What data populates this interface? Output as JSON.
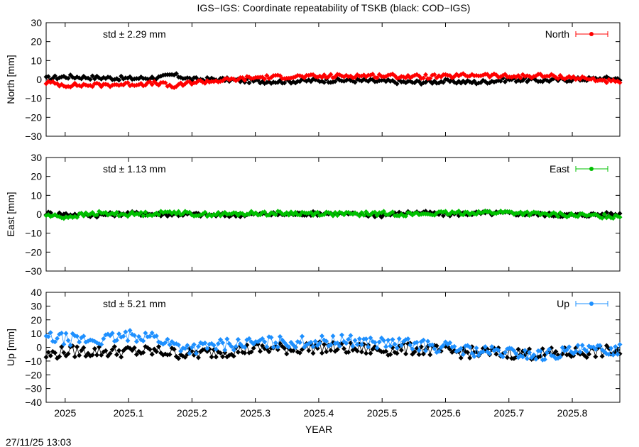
{
  "title": "IGS−IGS: Coordinate repeatability of TSKB (black: COD−IGS)",
  "timestamp": "27/11/25 13:03",
  "xlabel": "YEAR",
  "x_ticks": [
    "2025",
    "2025.1",
    "2025.2",
    "2025.3",
    "2025.4",
    "2025.5",
    "2025.6",
    "2025.7",
    "2025.8"
  ],
  "xlim": [
    2024.97,
    2025.875
  ],
  "chart_data": [
    {
      "type": "line",
      "ylabel": "North [mm]",
      "ylim": [
        -30,
        30
      ],
      "y_ticks": [
        "30",
        "20",
        "10",
        "0",
        "−10",
        "−20",
        "−30"
      ],
      "std_label": "std ± 2.29 mm",
      "legend": "North",
      "legend_position": "top-right",
      "color": "#ff0000",
      "series": [
        {
          "color": "#ff0000",
          "points": [
            [
              2024.97,
              -1.5
            ],
            [
              2025.0,
              -3.0
            ],
            [
              2025.05,
              -3.0
            ],
            [
              2025.1,
              -2.5
            ],
            [
              2025.15,
              -2.0
            ],
            [
              2025.17,
              -4.0
            ],
            [
              2025.2,
              -1.5
            ],
            [
              2025.25,
              -0.5
            ],
            [
              2025.3,
              1.0
            ],
            [
              2025.35,
              1.5
            ],
            [
              2025.4,
              1.5
            ],
            [
              2025.45,
              2.0
            ],
            [
              2025.5,
              2.0
            ],
            [
              2025.55,
              1.5
            ],
            [
              2025.6,
              1.5
            ],
            [
              2025.65,
              2.5
            ],
            [
              2025.7,
              1.5
            ],
            [
              2025.75,
              2.0
            ],
            [
              2025.8,
              1.0
            ],
            [
              2025.85,
              -0.5
            ],
            [
              2025.875,
              -2.0
            ]
          ]
        },
        {
          "color": "#000000",
          "points": [
            [
              2024.97,
              0.5
            ],
            [
              2025.0,
              1.5
            ],
            [
              2025.05,
              1.0
            ],
            [
              2025.1,
              0.5
            ],
            [
              2025.15,
              1.0
            ],
            [
              2025.17,
              2.5
            ],
            [
              2025.2,
              0.0
            ],
            [
              2025.25,
              0.0
            ],
            [
              2025.3,
              -1.0
            ],
            [
              2025.35,
              -1.0
            ],
            [
              2025.4,
              -0.5
            ],
            [
              2025.45,
              -0.5
            ],
            [
              2025.5,
              -1.0
            ],
            [
              2025.55,
              -1.5
            ],
            [
              2025.6,
              -1.0
            ],
            [
              2025.65,
              -1.5
            ],
            [
              2025.7,
              0.0
            ],
            [
              2025.75,
              -0.5
            ],
            [
              2025.8,
              0.0
            ],
            [
              2025.85,
              0.5
            ],
            [
              2025.875,
              0.5
            ]
          ]
        }
      ]
    },
    {
      "type": "line",
      "ylabel": "East [mm]",
      "ylim": [
        -30,
        30
      ],
      "y_ticks": [
        "30",
        "20",
        "10",
        "0",
        "−10",
        "−20",
        "−30"
      ],
      "std_label": "std ± 1.13 mm",
      "legend": "East",
      "legend_position": "top-right",
      "color": "#00c000",
      "series": [
        {
          "color": "#00c000",
          "points": [
            [
              2024.97,
              -0.5
            ],
            [
              2025.0,
              -1.5
            ],
            [
              2025.05,
              0.5
            ],
            [
              2025.1,
              0.0
            ],
            [
              2025.15,
              0.5
            ],
            [
              2025.17,
              1.5
            ],
            [
              2025.2,
              0.0
            ],
            [
              2025.25,
              0.0
            ],
            [
              2025.3,
              0.5
            ],
            [
              2025.35,
              0.5
            ],
            [
              2025.4,
              0.5
            ],
            [
              2025.45,
              0.0
            ],
            [
              2025.5,
              0.5
            ],
            [
              2025.55,
              0.0
            ],
            [
              2025.6,
              0.5
            ],
            [
              2025.65,
              1.0
            ],
            [
              2025.7,
              1.0
            ],
            [
              2025.75,
              0.0
            ],
            [
              2025.8,
              -0.5
            ],
            [
              2025.85,
              -1.0
            ],
            [
              2025.875,
              -1.0
            ]
          ]
        },
        {
          "color": "#000000",
          "points": [
            [
              2024.97,
              0.5
            ],
            [
              2025.0,
              0.0
            ],
            [
              2025.05,
              -0.5
            ],
            [
              2025.1,
              0.5
            ],
            [
              2025.15,
              0.0
            ],
            [
              2025.17,
              0.0
            ],
            [
              2025.2,
              0.0
            ],
            [
              2025.25,
              -0.5
            ],
            [
              2025.3,
              0.0
            ],
            [
              2025.35,
              0.0
            ],
            [
              2025.4,
              0.5
            ],
            [
              2025.45,
              0.0
            ],
            [
              2025.5,
              -0.5
            ],
            [
              2025.55,
              1.0
            ],
            [
              2025.6,
              0.0
            ],
            [
              2025.65,
              0.5
            ],
            [
              2025.7,
              0.5
            ],
            [
              2025.75,
              0.0
            ],
            [
              2025.8,
              -0.5
            ],
            [
              2025.85,
              0.0
            ],
            [
              2025.875,
              0.0
            ]
          ]
        }
      ]
    },
    {
      "type": "line",
      "ylabel": "Up [mm]",
      "ylim": [
        -40,
        40
      ],
      "y_ticks": [
        "40",
        "30",
        "20",
        "10",
        "0",
        "−10",
        "−20",
        "−30",
        "−40"
      ],
      "std_label": "std ± 5.21 mm",
      "legend": "Up",
      "legend_position": "top-right",
      "color": "#1e90ff",
      "series": [
        {
          "color": "#1e90ff",
          "points": [
            [
              2024.97,
              7.0
            ],
            [
              2025.0,
              6.0
            ],
            [
              2025.05,
              5.0
            ],
            [
              2025.1,
              8.0
            ],
            [
              2025.13,
              9.0
            ],
            [
              2025.17,
              2.0
            ],
            [
              2025.2,
              -1.0
            ],
            [
              2025.25,
              2.0
            ],
            [
              2025.3,
              3.0
            ],
            [
              2025.35,
              4.0
            ],
            [
              2025.4,
              4.0
            ],
            [
              2025.45,
              5.0
            ],
            [
              2025.5,
              3.0
            ],
            [
              2025.55,
              2.0
            ],
            [
              2025.6,
              0.0
            ],
            [
              2025.65,
              -3.0
            ],
            [
              2025.7,
              -4.0
            ],
            [
              2025.75,
              -6.0
            ],
            [
              2025.8,
              -3.0
            ],
            [
              2025.85,
              -2.0
            ],
            [
              2025.875,
              -1.0
            ]
          ]
        },
        {
          "color": "#000000",
          "points": [
            [
              2024.97,
              -6.0
            ],
            [
              2025.0,
              -3.0
            ],
            [
              2025.05,
              -3.0
            ],
            [
              2025.1,
              -3.0
            ],
            [
              2025.15,
              -3.0
            ],
            [
              2025.17,
              -4.0
            ],
            [
              2025.2,
              -5.0
            ],
            [
              2025.25,
              -3.0
            ],
            [
              2025.3,
              -1.0
            ],
            [
              2025.35,
              -1.0
            ],
            [
              2025.4,
              0.0
            ],
            [
              2025.45,
              -1.0
            ],
            [
              2025.5,
              -2.0
            ],
            [
              2025.55,
              -1.0
            ],
            [
              2025.6,
              -3.0
            ],
            [
              2025.65,
              -4.0
            ],
            [
              2025.7,
              -4.0
            ],
            [
              2025.75,
              -5.0
            ],
            [
              2025.8,
              -4.0
            ],
            [
              2025.85,
              -3.0
            ],
            [
              2025.875,
              -3.0
            ]
          ]
        }
      ]
    }
  ]
}
